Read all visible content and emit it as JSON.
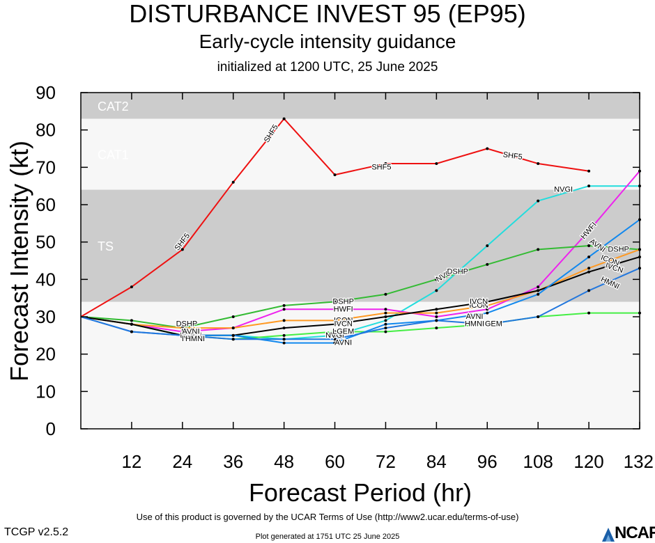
{
  "header": {
    "title": "DISTURBANCE INVEST 95 (EP95)",
    "subtitle": "Early-cycle intensity guidance",
    "init": "initialized at 1200 UTC, 25 June 2025"
  },
  "footer": {
    "terms": "Use of this product is governed by the UCAR Terms of Use (http://www2.ucar.edu/terms-of-use)",
    "version": "TCGP v2.5.2",
    "generated": "Plot generated at 1751 UTC   25 June 2025",
    "logo_text": "NCAR"
  },
  "chart_data": {
    "type": "line",
    "xlabel": "Forecast Period (hr)",
    "ylabel": "Forecast Intensity (kt)",
    "xlim": [
      0,
      132
    ],
    "ylim": [
      0,
      90
    ],
    "xticks": [
      12,
      24,
      36,
      48,
      60,
      72,
      84,
      96,
      108,
      120,
      132
    ],
    "yticks": [
      0,
      10,
      20,
      30,
      40,
      50,
      60,
      70,
      80,
      90
    ],
    "bands": [
      {
        "label": "TS",
        "from": 34,
        "to": 64,
        "color": "#cccccc"
      },
      {
        "label": "CAT1",
        "from": 64,
        "to": 83,
        "color": "#f7f7f7"
      },
      {
        "label": "CAT2",
        "from": 83,
        "to": 90,
        "color": "#cccccc"
      }
    ],
    "below_band_color": "#f7f7f7",
    "series": [
      {
        "name": "SHF5",
        "color": "#ee1111",
        "x": [
          0,
          12,
          24,
          36,
          48,
          60,
          72,
          84,
          96,
          108,
          120
        ],
        "y": [
          30,
          38,
          48,
          66,
          83,
          68,
          71,
          71,
          75,
          71,
          69
        ],
        "labels": [
          {
            "x": 24,
            "y": 50,
            "angle": -52
          },
          {
            "x": 45,
            "y": 79,
            "angle": -58
          },
          {
            "x": 71,
            "y": 70,
            "angle": 0
          },
          {
            "x": 102,
            "y": 73,
            "angle": 8
          }
        ]
      },
      {
        "name": "NVGI",
        "color": "#22dddd",
        "x": [
          0,
          12,
          24,
          36,
          48,
          60,
          72,
          84,
          96,
          108,
          120,
          132
        ],
        "y": [
          30,
          28,
          25,
          25,
          24,
          25,
          29,
          37,
          49,
          61,
          65,
          65
        ],
        "labels": [
          {
            "x": 60,
            "y": 25,
            "angle": 0
          },
          {
            "x": 86,
            "y": 41,
            "angle": -30
          },
          {
            "x": 114,
            "y": 64,
            "angle": 0
          }
        ]
      },
      {
        "name": "HWFI",
        "color": "#ee22ee",
        "x": [
          0,
          12,
          24,
          36,
          48,
          60,
          72,
          84,
          96,
          108,
          120,
          132
        ],
        "y": [
          30,
          28,
          26,
          27,
          32,
          32,
          32,
          30,
          32,
          38,
          53,
          69
        ],
        "labels": [
          {
            "x": 62,
            "y": 32,
            "angle": 0
          },
          {
            "x": 120,
            "y": 53,
            "angle": -50
          }
        ]
      },
      {
        "name": "DSHP",
        "color": "#33bb33",
        "x": [
          0,
          12,
          24,
          36,
          48,
          60,
          72,
          84,
          96,
          108,
          120,
          132
        ],
        "y": [
          30,
          29,
          27,
          30,
          33,
          34,
          36,
          40,
          44,
          48,
          49,
          48
        ],
        "labels": [
          {
            "x": 25,
            "y": 28,
            "angle": 0
          },
          {
            "x": 62,
            "y": 34,
            "angle": 0
          },
          {
            "x": 89,
            "y": 42,
            "angle": 0
          },
          {
            "x": 127,
            "y": 48,
            "angle": 0
          }
        ]
      },
      {
        "name": "LGEM",
        "color": "#44ee44",
        "x": [
          0,
          12,
          24,
          36,
          48,
          60,
          72,
          84,
          96,
          108,
          120,
          132
        ],
        "y": [
          30,
          28,
          25,
          24,
          25,
          26,
          26,
          27,
          28,
          30,
          31,
          31
        ],
        "labels": [
          {
            "x": 26,
            "y": 25,
            "angle": 0
          },
          {
            "x": 62,
            "y": 26,
            "angle": 0
          },
          {
            "x": 97,
            "y": 28,
            "angle": 0
          }
        ]
      },
      {
        "name": "ICON",
        "color": "#ff9922",
        "x": [
          0,
          12,
          24,
          36,
          48,
          60,
          72,
          84,
          96,
          108,
          120,
          132
        ],
        "y": [
          30,
          28,
          27,
          27,
          29,
          29,
          31,
          31,
          33,
          37,
          43,
          48
        ],
        "labels": [
          {
            "x": 26,
            "y": 26,
            "angle": 0
          },
          {
            "x": 62,
            "y": 29,
            "angle": 0
          },
          {
            "x": 94,
            "y": 33,
            "angle": 0
          },
          {
            "x": 125,
            "y": 45,
            "angle": 20
          }
        ]
      },
      {
        "name": "IVCN",
        "color": "#000000",
        "x": [
          0,
          12,
          24,
          36,
          48,
          60,
          72,
          84,
          96,
          108,
          120,
          132
        ],
        "y": [
          30,
          28,
          25,
          25,
          27,
          28,
          30,
          32,
          34,
          37,
          42,
          46
        ],
        "labels": [
          {
            "x": 26,
            "y": 24,
            "angle": 0
          },
          {
            "x": 62,
            "y": 28,
            "angle": 0
          },
          {
            "x": 94,
            "y": 34,
            "angle": 0
          },
          {
            "x": 126,
            "y": 43,
            "angle": 18
          }
        ]
      },
      {
        "name": "AVNI",
        "color": "#1188ee",
        "x": [
          0,
          12,
          24,
          36,
          48,
          60,
          72,
          84,
          96,
          108,
          120,
          132
        ],
        "y": [
          30,
          26,
          25,
          25,
          23,
          23,
          28,
          29,
          31,
          36,
          46,
          56
        ],
        "labels": [
          {
            "x": 26,
            "y": 26,
            "angle": 0
          },
          {
            "x": 62,
            "y": 23,
            "angle": 0
          },
          {
            "x": 93,
            "y": 30,
            "angle": 0
          },
          {
            "x": 122,
            "y": 49,
            "angle": 35
          }
        ]
      },
      {
        "name": "HMNI",
        "color": "#2277dd",
        "x": [
          0,
          12,
          24,
          36,
          48,
          60,
          72,
          84,
          96,
          108,
          120,
          132
        ],
        "y": [
          30,
          26,
          25,
          24,
          24,
          24,
          27,
          29,
          28,
          30,
          37,
          43
        ],
        "labels": [
          {
            "x": 27,
            "y": 24,
            "angle": 0
          },
          {
            "x": 93,
            "y": 28,
            "angle": 0
          },
          {
            "x": 125,
            "y": 39,
            "angle": 25
          }
        ]
      }
    ]
  }
}
